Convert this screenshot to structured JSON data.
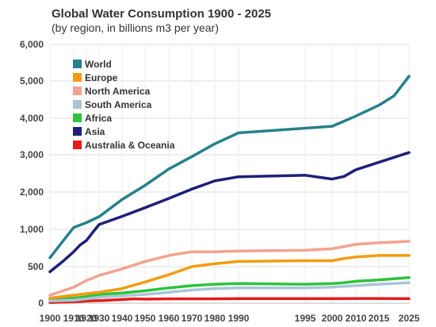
{
  "chart_data": {
    "type": "line",
    "title": "Global Water Consumption 1900 - 2025",
    "subtitle": "(by region, in billions m3 per year)",
    "xlabel": "",
    "ylabel": "",
    "xlim": [
      1900,
      2025
    ],
    "ylim": [
      0,
      6000
    ],
    "y_tick_values": [
      0,
      500,
      1000,
      2000,
      3000,
      4000,
      5000,
      6000
    ],
    "y_tick_labels": [
      "0",
      "500",
      "1,000",
      "2,000",
      "3,000",
      "4,000",
      "5,000",
      "6,000"
    ],
    "x_tick_values": [
      1900,
      1910,
      1920,
      1930,
      1940,
      1950,
      1960,
      1970,
      1980,
      1990,
      1995,
      2000,
      2010,
      2015,
      2025
    ],
    "x_tick_labels": [
      "1900",
      "1910",
      "1920",
      "1930",
      "1940",
      "1950",
      "1960",
      "1970",
      "1980",
      "1990",
      "1995",
      "2000",
      "2010",
      "2015",
      "2025"
    ],
    "grid": true,
    "legend_position": "top-left",
    "series": [
      {
        "name": "World",
        "color": "#26808c",
        "points": [
          [
            1900,
            620
          ],
          [
            1910,
            1050
          ],
          [
            1920,
            1180
          ],
          [
            1930,
            1340
          ],
          [
            1940,
            1800
          ],
          [
            1950,
            2180
          ],
          [
            1960,
            2620
          ],
          [
            1970,
            2950
          ],
          [
            1980,
            3300
          ],
          [
            1990,
            3600
          ],
          [
            2000,
            3780
          ],
          [
            2010,
            4060
          ],
          [
            2015,
            4350
          ],
          [
            2020,
            4600
          ],
          [
            2025,
            5130
          ]
        ]
      },
      {
        "name": "Europe",
        "color": "#f29c0e",
        "points": [
          [
            1900,
            70
          ],
          [
            1910,
            110
          ],
          [
            1920,
            130
          ],
          [
            1930,
            150
          ],
          [
            1940,
            200
          ],
          [
            1950,
            290
          ],
          [
            1960,
            390
          ],
          [
            1970,
            500
          ],
          [
            1980,
            540
          ],
          [
            1990,
            570
          ],
          [
            1995,
            580
          ],
          [
            2000,
            580
          ],
          [
            2005,
            610
          ],
          [
            2010,
            630
          ],
          [
            2015,
            650
          ],
          [
            2025,
            650
          ]
        ]
      },
      {
        "name": "North America",
        "color": "#f2a38f",
        "points": [
          [
            1900,
            110
          ],
          [
            1910,
            220
          ],
          [
            1920,
            310
          ],
          [
            1930,
            380
          ],
          [
            1940,
            470
          ],
          [
            1950,
            570
          ],
          [
            1960,
            650
          ],
          [
            1970,
            700
          ],
          [
            1980,
            700
          ],
          [
            1990,
            710
          ],
          [
            1995,
            720
          ],
          [
            2000,
            740
          ],
          [
            2005,
            770
          ],
          [
            2010,
            800
          ],
          [
            2015,
            820
          ],
          [
            2025,
            840
          ]
        ]
      },
      {
        "name": "South America",
        "color": "#a9c6d6",
        "points": [
          [
            1900,
            30
          ],
          [
            1910,
            40
          ],
          [
            1920,
            60
          ],
          [
            1930,
            80
          ],
          [
            1940,
            100
          ],
          [
            1950,
            120
          ],
          [
            1960,
            150
          ],
          [
            1970,
            180
          ],
          [
            1980,
            200
          ],
          [
            1990,
            210
          ],
          [
            1995,
            210
          ],
          [
            2000,
            220
          ],
          [
            2005,
            230
          ],
          [
            2010,
            240
          ],
          [
            2015,
            260
          ],
          [
            2025,
            280
          ]
        ]
      },
      {
        "name": "Africa",
        "color": "#2dc33c",
        "points": [
          [
            1900,
            50
          ],
          [
            1910,
            70
          ],
          [
            1920,
            90
          ],
          [
            1930,
            120
          ],
          [
            1940,
            140
          ],
          [
            1950,
            170
          ],
          [
            1960,
            210
          ],
          [
            1970,
            240
          ],
          [
            1980,
            260
          ],
          [
            1990,
            270
          ],
          [
            1995,
            260
          ],
          [
            2000,
            270
          ],
          [
            2005,
            280
          ],
          [
            2010,
            300
          ],
          [
            2015,
            320
          ],
          [
            2025,
            350
          ]
        ]
      },
      {
        "name": "Asia",
        "color": "#1f1f7a",
        "points": [
          [
            1900,
            430
          ],
          [
            1905,
            560
          ],
          [
            1910,
            700
          ],
          [
            1915,
            790
          ],
          [
            1920,
            850
          ],
          [
            1925,
            960
          ],
          [
            1930,
            1130
          ],
          [
            1940,
            1350
          ],
          [
            1950,
            1580
          ],
          [
            1960,
            1830
          ],
          [
            1970,
            2080
          ],
          [
            1980,
            2300
          ],
          [
            1990,
            2410
          ],
          [
            1995,
            2450
          ],
          [
            2000,
            2350
          ],
          [
            2005,
            2420
          ],
          [
            2010,
            2600
          ],
          [
            2015,
            2800
          ],
          [
            2025,
            3060
          ]
        ]
      },
      {
        "name": "Australia & Oceania",
        "color": "#e61a1a",
        "points": [
          [
            1900,
            10
          ],
          [
            1910,
            20
          ],
          [
            1920,
            30
          ],
          [
            1930,
            35
          ],
          [
            1940,
            50
          ],
          [
            1945,
            60
          ],
          [
            1950,
            55
          ],
          [
            1960,
            60
          ],
          [
            1970,
            60
          ],
          [
            1980,
            60
          ],
          [
            1990,
            62
          ],
          [
            2000,
            62
          ],
          [
            2010,
            64
          ],
          [
            2015,
            64
          ],
          [
            2025,
            62
          ]
        ]
      }
    ]
  }
}
